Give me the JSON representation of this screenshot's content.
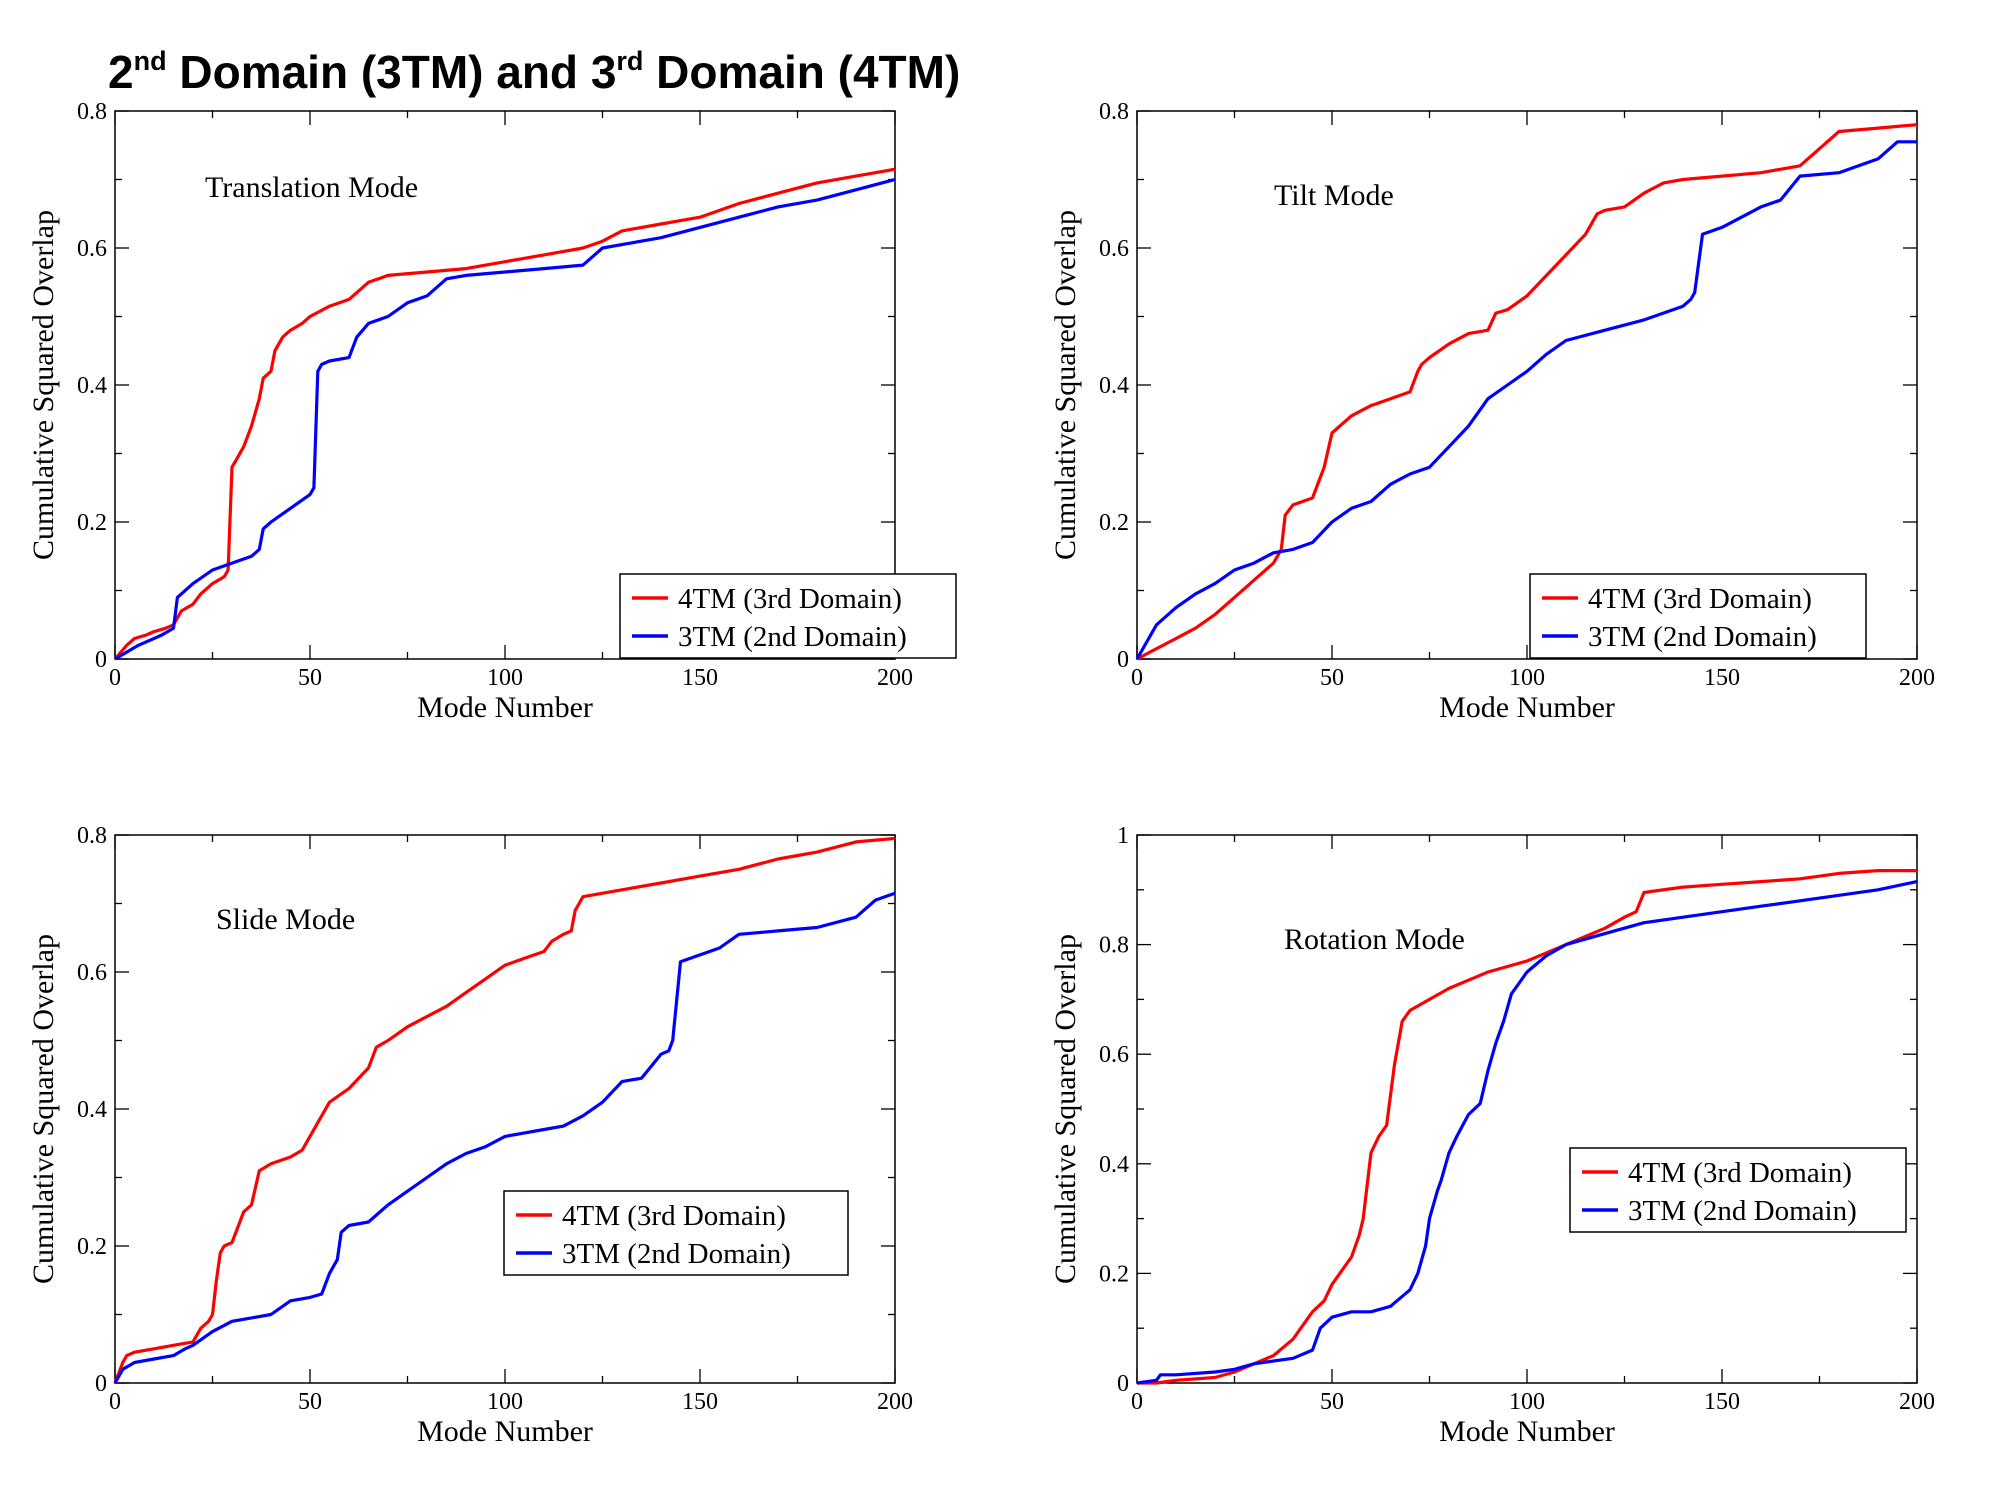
{
  "page": {
    "title_parts": [
      "2",
      "nd",
      " Domain (3TM) and 3",
      "rd",
      " Domain (4TM)"
    ]
  },
  "colors": {
    "series_4tm": "#ff0000",
    "series_3tm": "#0000ff",
    "axis": "#000000"
  },
  "chart_data": [
    {
      "type": "line",
      "title": "Translation Mode",
      "xlabel": "Mode Number",
      "ylabel": "Cumulative Squared Overlap",
      "xlim": [
        0,
        200
      ],
      "ylim": [
        0,
        0.8
      ],
      "xticks": [
        0,
        50,
        100,
        150,
        200
      ],
      "yticks": [
        0,
        0.2,
        0.4,
        0.6,
        0.8
      ],
      "ytick_labels": [
        "0",
        "0.2",
        "0.4",
        "0.6",
        "0.8"
      ],
      "legend": {
        "position": "lower-right",
        "entries": [
          "4TM (3rd Domain)",
          "3TM (2nd Domain)"
        ]
      },
      "series": [
        {
          "name": "4TM (3rd Domain)",
          "color": "#ff0000",
          "x": [
            0,
            3,
            5,
            8,
            10,
            13,
            15,
            17,
            20,
            22,
            25,
            28,
            29,
            30,
            31,
            33,
            35,
            37,
            38,
            40,
            41,
            43,
            45,
            48,
            50,
            55,
            60,
            65,
            70,
            80,
            90,
            100,
            105,
            110,
            120,
            125,
            130,
            140,
            145,
            150,
            160,
            170,
            180,
            190,
            200
          ],
          "y": [
            0,
            0.02,
            0.03,
            0.035,
            0.04,
            0.045,
            0.05,
            0.07,
            0.08,
            0.095,
            0.11,
            0.12,
            0.13,
            0.28,
            0.29,
            0.31,
            0.34,
            0.38,
            0.41,
            0.42,
            0.45,
            0.47,
            0.48,
            0.49,
            0.5,
            0.515,
            0.525,
            0.55,
            0.56,
            0.565,
            0.57,
            0.58,
            0.585,
            0.59,
            0.6,
            0.61,
            0.625,
            0.635,
            0.64,
            0.645,
            0.665,
            0.68,
            0.695,
            0.705,
            0.715
          ]
        },
        {
          "name": "3TM (2nd Domain)",
          "color": "#0000ff",
          "x": [
            0,
            3,
            6,
            10,
            12,
            15,
            16,
            20,
            25,
            30,
            35,
            37,
            38,
            40,
            45,
            50,
            51,
            52,
            53,
            55,
            60,
            62,
            65,
            70,
            75,
            80,
            85,
            90,
            100,
            110,
            120,
            125,
            130,
            140,
            150,
            160,
            170,
            180,
            190,
            200
          ],
          "y": [
            0,
            0.01,
            0.02,
            0.03,
            0.035,
            0.045,
            0.09,
            0.11,
            0.13,
            0.14,
            0.15,
            0.16,
            0.19,
            0.2,
            0.22,
            0.24,
            0.25,
            0.42,
            0.43,
            0.435,
            0.44,
            0.47,
            0.49,
            0.5,
            0.52,
            0.53,
            0.555,
            0.56,
            0.565,
            0.57,
            0.575,
            0.6,
            0.605,
            0.615,
            0.63,
            0.645,
            0.66,
            0.67,
            0.685,
            0.7
          ]
        }
      ]
    },
    {
      "type": "line",
      "title": "Tilt Mode",
      "xlabel": "Mode Number",
      "ylabel": "Cumulative Squared Overlap",
      "xlim": [
        0,
        200
      ],
      "ylim": [
        0,
        0.8
      ],
      "xticks": [
        0,
        50,
        100,
        150,
        200
      ],
      "yticks": [
        0,
        0.2,
        0.4,
        0.6,
        0.8
      ],
      "ytick_labels": [
        "0",
        "0.2",
        "0.4",
        "0.6",
        "0.8"
      ],
      "legend": {
        "position": "center-right",
        "entries": [
          "4TM (3rd Domain)",
          "3TM (2nd Domain)"
        ]
      },
      "series": [
        {
          "name": "4TM (3rd Domain)",
          "color": "#ff0000",
          "x": [
            0,
            5,
            10,
            15,
            20,
            25,
            30,
            35,
            37,
            38,
            40,
            45,
            48,
            50,
            52,
            55,
            60,
            65,
            70,
            72,
            73,
            75,
            80,
            85,
            90,
            92,
            95,
            100,
            105,
            110,
            115,
            118,
            120,
            125,
            130,
            135,
            140,
            150,
            160,
            170,
            175,
            180,
            190,
            200
          ],
          "y": [
            0,
            0.015,
            0.03,
            0.045,
            0.065,
            0.09,
            0.115,
            0.14,
            0.16,
            0.21,
            0.225,
            0.235,
            0.28,
            0.33,
            0.34,
            0.355,
            0.37,
            0.38,
            0.39,
            0.42,
            0.43,
            0.44,
            0.46,
            0.475,
            0.48,
            0.505,
            0.51,
            0.53,
            0.56,
            0.59,
            0.62,
            0.65,
            0.655,
            0.66,
            0.68,
            0.695,
            0.7,
            0.705,
            0.71,
            0.72,
            0.745,
            0.77,
            0.775,
            0.78
          ]
        },
        {
          "name": "3TM (2nd Domain)",
          "color": "#0000ff",
          "x": [
            0,
            3,
            5,
            10,
            15,
            20,
            25,
            30,
            35,
            40,
            45,
            50,
            55,
            60,
            65,
            70,
            75,
            80,
            85,
            90,
            95,
            100,
            105,
            110,
            120,
            130,
            140,
            142,
            143,
            145,
            150,
            155,
            160,
            165,
            170,
            180,
            190,
            195,
            200
          ],
          "y": [
            0,
            0.03,
            0.05,
            0.075,
            0.095,
            0.11,
            0.13,
            0.14,
            0.155,
            0.16,
            0.17,
            0.2,
            0.22,
            0.23,
            0.255,
            0.27,
            0.28,
            0.31,
            0.34,
            0.38,
            0.4,
            0.42,
            0.445,
            0.465,
            0.48,
            0.495,
            0.515,
            0.525,
            0.535,
            0.62,
            0.63,
            0.645,
            0.66,
            0.67,
            0.705,
            0.71,
            0.73,
            0.755,
            0.755
          ]
        }
      ]
    },
    {
      "type": "line",
      "title": "Slide Mode",
      "xlabel": "Mode Number",
      "ylabel": "Cumulative Squared Overlap",
      "xlim": [
        0,
        200
      ],
      "ylim": [
        0,
        0.8
      ],
      "xticks": [
        0,
        50,
        100,
        150,
        200
      ],
      "yticks": [
        0,
        0.2,
        0.4,
        0.6,
        0.8
      ],
      "ytick_labels": [
        "0",
        "0.2",
        "0.4",
        "0.6",
        "0.8"
      ],
      "legend": {
        "position": "lower-right",
        "entries": [
          "4TM (3rd Domain)",
          "3TM (2nd Domain)"
        ]
      },
      "series": [
        {
          "name": "4TM (3rd Domain)",
          "color": "#ff0000",
          "x": [
            0,
            2,
            3,
            5,
            10,
            15,
            20,
            22,
            24,
            25,
            26,
            27,
            28,
            30,
            33,
            35,
            37,
            40,
            45,
            48,
            50,
            52,
            55,
            60,
            65,
            67,
            70,
            75,
            80,
            85,
            90,
            95,
            100,
            105,
            110,
            112,
            115,
            117,
            118,
            120,
            130,
            140,
            150,
            160,
            170,
            180,
            190,
            200
          ],
          "y": [
            0,
            0.03,
            0.04,
            0.045,
            0.05,
            0.055,
            0.06,
            0.08,
            0.09,
            0.1,
            0.15,
            0.19,
            0.2,
            0.205,
            0.25,
            0.26,
            0.31,
            0.32,
            0.33,
            0.34,
            0.36,
            0.38,
            0.41,
            0.43,
            0.46,
            0.49,
            0.5,
            0.52,
            0.535,
            0.55,
            0.57,
            0.59,
            0.61,
            0.62,
            0.63,
            0.645,
            0.655,
            0.66,
            0.69,
            0.71,
            0.72,
            0.73,
            0.74,
            0.75,
            0.765,
            0.775,
            0.79,
            0.795
          ]
        },
        {
          "name": "3TM (2nd Domain)",
          "color": "#0000ff",
          "x": [
            0,
            2,
            5,
            10,
            15,
            18,
            20,
            25,
            30,
            35,
            40,
            45,
            50,
            53,
            55,
            57,
            58,
            60,
            65,
            70,
            75,
            80,
            85,
            90,
            95,
            100,
            110,
            115,
            120,
            125,
            130,
            135,
            140,
            142,
            143,
            145,
            150,
            155,
            160,
            170,
            180,
            190,
            195,
            200
          ],
          "y": [
            0,
            0.02,
            0.03,
            0.035,
            0.04,
            0.05,
            0.055,
            0.075,
            0.09,
            0.095,
            0.1,
            0.12,
            0.125,
            0.13,
            0.16,
            0.18,
            0.22,
            0.23,
            0.235,
            0.26,
            0.28,
            0.3,
            0.32,
            0.335,
            0.345,
            0.36,
            0.37,
            0.375,
            0.39,
            0.41,
            0.44,
            0.445,
            0.48,
            0.485,
            0.5,
            0.615,
            0.625,
            0.635,
            0.655,
            0.66,
            0.665,
            0.68,
            0.705,
            0.715
          ]
        }
      ]
    },
    {
      "type": "line",
      "title": "Rotation Mode",
      "xlabel": "Mode Number",
      "ylabel": "Cumulative Squared Overlap",
      "xlim": [
        0,
        200
      ],
      "ylim": [
        0,
        1
      ],
      "xticks": [
        0,
        50,
        100,
        150,
        200
      ],
      "yticks": [
        0,
        0.2,
        0.4,
        0.6,
        0.8,
        1
      ],
      "ytick_labels": [
        "0",
        "0.2",
        "0.4",
        "0.6",
        "0.8",
        "1"
      ],
      "legend": {
        "position": "center-right",
        "entries": [
          "4TM (3rd Domain)",
          "3TM (2nd Domain)"
        ]
      },
      "series": [
        {
          "name": "4TM (3rd Domain)",
          "color": "#ff0000",
          "x": [
            0,
            5,
            10,
            20,
            25,
            30,
            35,
            40,
            42,
            45,
            48,
            50,
            52,
            55,
            57,
            58,
            60,
            62,
            64,
            66,
            68,
            70,
            75,
            80,
            85,
            90,
            95,
            100,
            105,
            110,
            120,
            125,
            128,
            130,
            140,
            150,
            160,
            170,
            180,
            190,
            200
          ],
          "y": [
            0,
            0,
            0.005,
            0.01,
            0.02,
            0.035,
            0.05,
            0.08,
            0.1,
            0.13,
            0.15,
            0.18,
            0.2,
            0.23,
            0.27,
            0.3,
            0.42,
            0.45,
            0.47,
            0.58,
            0.66,
            0.68,
            0.7,
            0.72,
            0.735,
            0.75,
            0.76,
            0.77,
            0.785,
            0.8,
            0.83,
            0.85,
            0.86,
            0.895,
            0.905,
            0.91,
            0.915,
            0.92,
            0.93,
            0.935,
            0.935
          ]
        },
        {
          "name": "3TM (2nd Domain)",
          "color": "#0000ff",
          "x": [
            0,
            5,
            6,
            10,
            20,
            25,
            30,
            40,
            45,
            47,
            50,
            55,
            60,
            65,
            70,
            72,
            74,
            75,
            77,
            78,
            80,
            82,
            85,
            88,
            90,
            92,
            94,
            96,
            98,
            100,
            105,
            110,
            120,
            130,
            140,
            150,
            160,
            170,
            180,
            190,
            200
          ],
          "y": [
            0,
            0.005,
            0.015,
            0.015,
            0.02,
            0.025,
            0.035,
            0.045,
            0.06,
            0.1,
            0.12,
            0.13,
            0.13,
            0.14,
            0.17,
            0.2,
            0.25,
            0.3,
            0.35,
            0.37,
            0.42,
            0.45,
            0.49,
            0.51,
            0.57,
            0.62,
            0.66,
            0.71,
            0.73,
            0.75,
            0.78,
            0.8,
            0.82,
            0.84,
            0.85,
            0.86,
            0.87,
            0.88,
            0.89,
            0.9,
            0.915
          ]
        }
      ]
    }
  ]
}
